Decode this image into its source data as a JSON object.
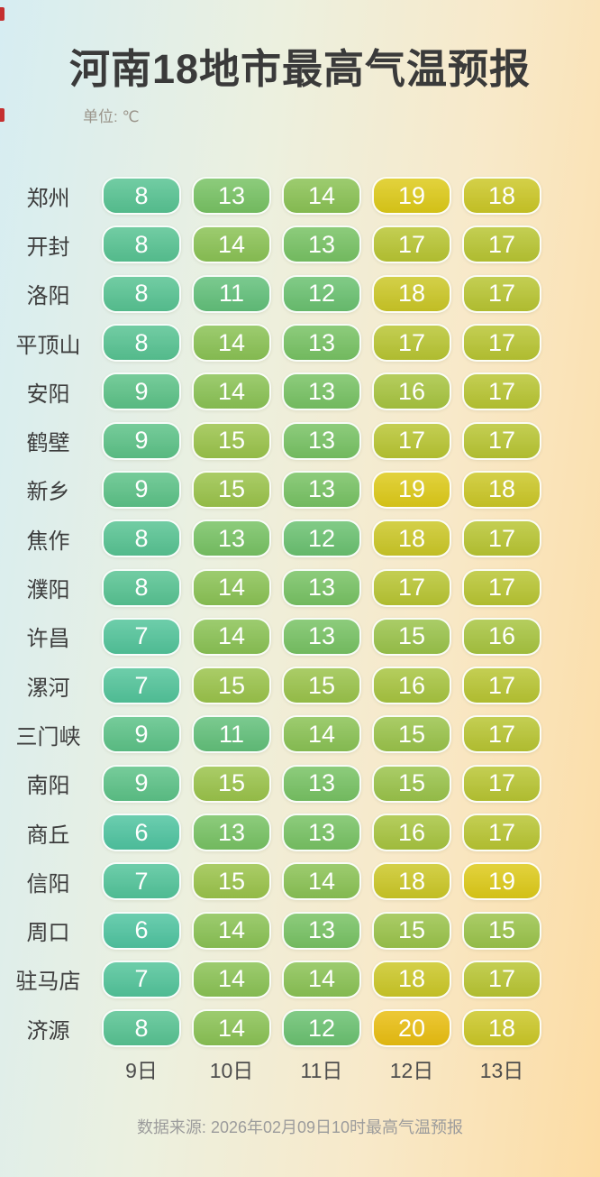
{
  "page": {
    "title": "河南18地市最高气温预报",
    "unit_label": "单位: ℃",
    "footer": "数据来源: 2026年02月09日10时最高气温预报"
  },
  "chart_data": {
    "type": "table",
    "title": "河南18地市最高气温预报",
    "unit": "℃",
    "columns": [
      "9日",
      "10日",
      "11日",
      "12日",
      "13日"
    ],
    "rows": [
      {
        "city": "郑州",
        "temps": [
          8,
          13,
          14,
          19,
          18
        ]
      },
      {
        "city": "开封",
        "temps": [
          8,
          14,
          13,
          17,
          17
        ]
      },
      {
        "city": "洛阳",
        "temps": [
          8,
          11,
          12,
          18,
          17
        ]
      },
      {
        "city": "平顶山",
        "temps": [
          8,
          14,
          13,
          17,
          17
        ]
      },
      {
        "city": "安阳",
        "temps": [
          9,
          14,
          13,
          16,
          17
        ]
      },
      {
        "city": "鹤壁",
        "temps": [
          9,
          15,
          13,
          17,
          17
        ]
      },
      {
        "city": "新乡",
        "temps": [
          9,
          15,
          13,
          19,
          18
        ]
      },
      {
        "city": "焦作",
        "temps": [
          8,
          13,
          12,
          18,
          17
        ]
      },
      {
        "city": "濮阳",
        "temps": [
          8,
          14,
          13,
          17,
          17
        ]
      },
      {
        "city": "许昌",
        "temps": [
          7,
          14,
          13,
          15,
          16
        ]
      },
      {
        "city": "漯河",
        "temps": [
          7,
          15,
          15,
          16,
          17
        ]
      },
      {
        "city": "三门峡",
        "temps": [
          9,
          11,
          14,
          15,
          17
        ]
      },
      {
        "city": "南阳",
        "temps": [
          9,
          15,
          13,
          15,
          17
        ]
      },
      {
        "city": "商丘",
        "temps": [
          6,
          13,
          13,
          16,
          17
        ]
      },
      {
        "city": "信阳",
        "temps": [
          7,
          15,
          14,
          18,
          19
        ]
      },
      {
        "city": "周口",
        "temps": [
          6,
          14,
          13,
          15,
          15
        ]
      },
      {
        "city": "驻马店",
        "temps": [
          7,
          14,
          14,
          18,
          17
        ]
      },
      {
        "city": "济源",
        "temps": [
          8,
          14,
          12,
          20,
          18
        ]
      }
    ],
    "source": "数据来源: 2026年02月09日10时最高气温预报"
  },
  "colors": {
    "temp_scale": {
      "6": "#4fc4a0",
      "7": "#52c49a",
      "8": "#57c392",
      "9": "#5cc287",
      "11": "#62c07a",
      "12": "#6ac170",
      "13": "#77c263",
      "14": "#8ac254",
      "15": "#9ac34a",
      "16": "#a7c43f",
      "17": "#b8c532",
      "18": "#cbc726",
      "19": "#ddca18",
      "20": "#e9be10"
    },
    "pill_text": "#ffffff",
    "edge_marker": "#c53030",
    "background_gradient": [
      "#d6edf2",
      "#ecf0df",
      "#f8e9c9",
      "#fcdca4"
    ]
  }
}
